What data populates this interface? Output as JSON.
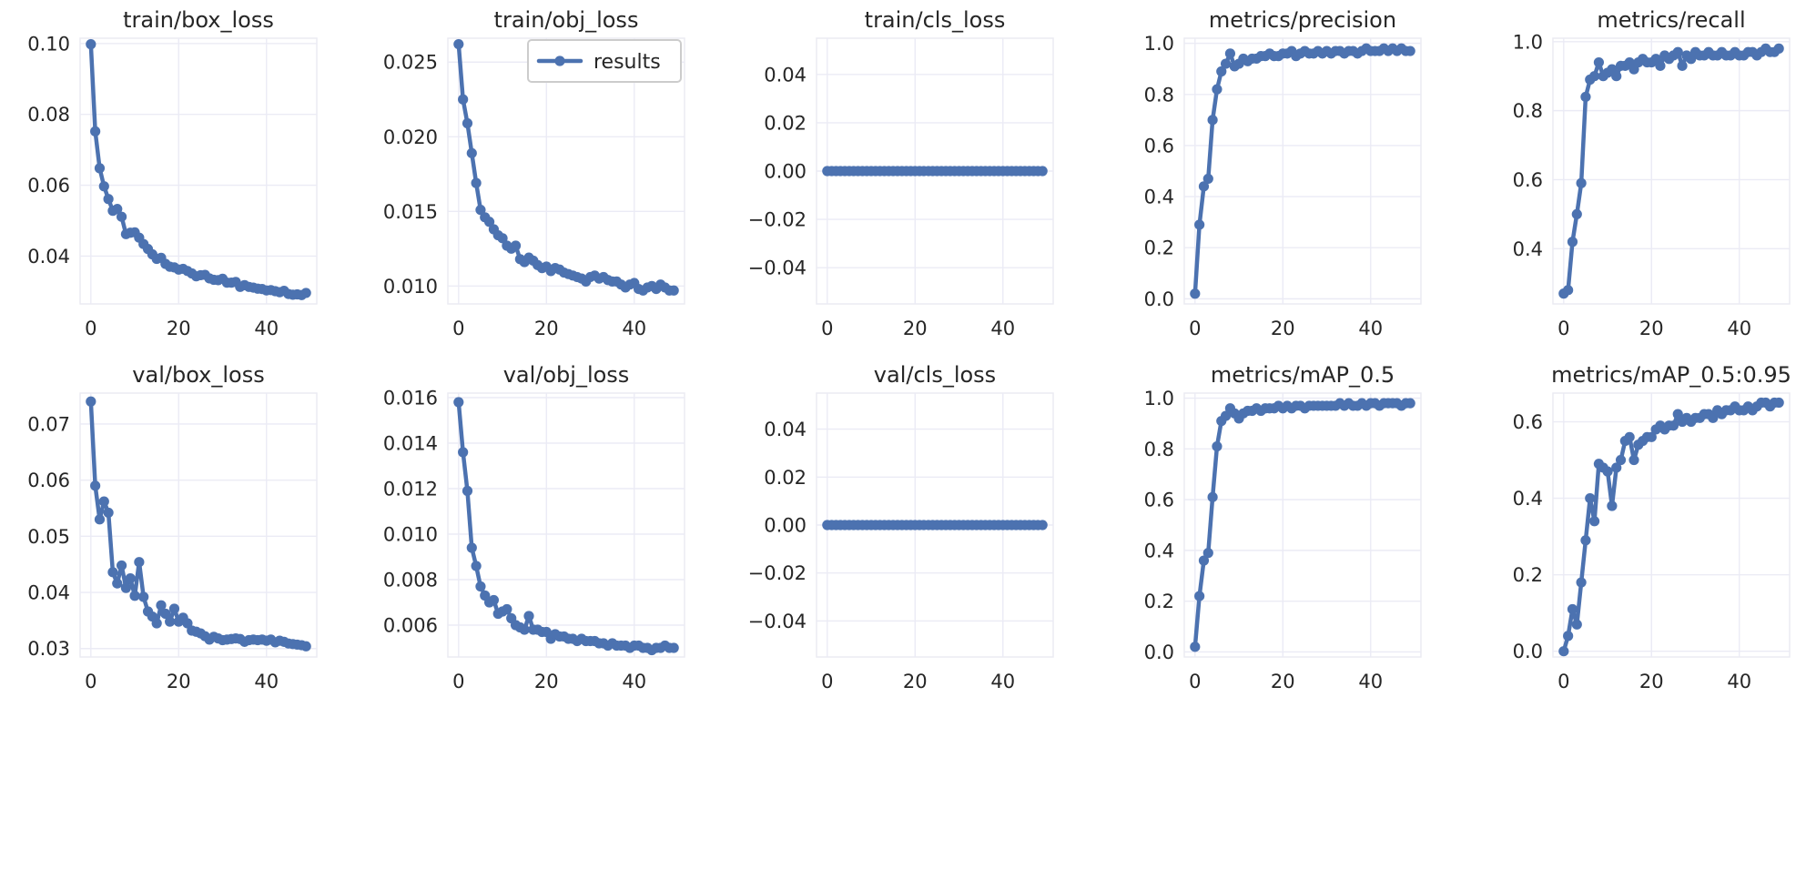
{
  "colors": {
    "series": "#4c72b0",
    "grid": "#ebebf5",
    "text": "#262626",
    "background": "#ffffff"
  },
  "legend": {
    "label": "results",
    "placement": "upper-right of train/obj_loss"
  },
  "chart_data": [
    {
      "type": "line",
      "title": "train/box_loss",
      "xlim": [
        0,
        49
      ],
      "ylim": [
        0.0265,
        0.1015
      ],
      "xticks": [
        0,
        20,
        40
      ],
      "xtick_labels": [
        "0",
        "20",
        "40"
      ],
      "yticks": [
        0.04,
        0.06,
        0.08,
        0.1
      ],
      "ytick_labels": [
        "0.04",
        "0.06",
        "0.08",
        "0.10"
      ],
      "series": [
        {
          "name": "results",
          "values": [
            0.0998,
            0.0752,
            0.0648,
            0.0597,
            0.0561,
            0.0528,
            0.0533,
            0.0511,
            0.0462,
            0.0466,
            0.0467,
            0.0452,
            0.0434,
            0.042,
            0.0405,
            0.0392,
            0.0395,
            0.0378,
            0.037,
            0.0368,
            0.0362,
            0.0364,
            0.0358,
            0.0351,
            0.0343,
            0.0346,
            0.0347,
            0.0337,
            0.0333,
            0.0332,
            0.0336,
            0.0325,
            0.0325,
            0.0327,
            0.0313,
            0.0318,
            0.0313,
            0.0311,
            0.0308,
            0.0307,
            0.0303,
            0.0304,
            0.0301,
            0.0298,
            0.0302,
            0.0293,
            0.0291,
            0.0292,
            0.029,
            0.0296
          ]
        }
      ]
    },
    {
      "type": "line",
      "title": "train/obj_loss",
      "xlim": [
        0,
        49
      ],
      "ylim": [
        0.0088,
        0.0266
      ],
      "xticks": [
        0,
        20,
        40
      ],
      "xtick_labels": [
        "0",
        "20",
        "40"
      ],
      "yticks": [
        0.01,
        0.015,
        0.02,
        0.025
      ],
      "ytick_labels": [
        "0.010",
        "0.015",
        "0.020",
        "0.025"
      ],
      "legend": true,
      "series": [
        {
          "name": "results",
          "values": [
            0.0262,
            0.0225,
            0.0209,
            0.0189,
            0.0169,
            0.0151,
            0.0146,
            0.0143,
            0.0138,
            0.0134,
            0.0132,
            0.0127,
            0.0125,
            0.0127,
            0.0118,
            0.0116,
            0.0119,
            0.0117,
            0.0114,
            0.0112,
            0.0113,
            0.011,
            0.0112,
            0.0111,
            0.0109,
            0.0108,
            0.0107,
            0.0106,
            0.0105,
            0.0103,
            0.0106,
            0.0107,
            0.0105,
            0.0106,
            0.0104,
            0.0103,
            0.0103,
            0.0101,
            0.0099,
            0.0101,
            0.0102,
            0.0098,
            0.0097,
            0.0099,
            0.01,
            0.0098,
            0.0101,
            0.0099,
            0.0097,
            0.0097
          ]
        }
      ]
    },
    {
      "type": "line",
      "title": "train/cls_loss",
      "xlim": [
        0,
        49
      ],
      "ylim": [
        -0.055,
        0.055
      ],
      "xticks": [
        0,
        20,
        40
      ],
      "xtick_labels": [
        "0",
        "20",
        "40"
      ],
      "yticks": [
        0.04,
        0.02,
        0.0,
        -0.02,
        -0.04
      ],
      "ytick_labels": [
        "0.04",
        "0.02",
        "0.00",
        "−0.02",
        "−0.04"
      ],
      "series": [
        {
          "name": "results",
          "values": [
            0,
            0,
            0,
            0,
            0,
            0,
            0,
            0,
            0,
            0,
            0,
            0,
            0,
            0,
            0,
            0,
            0,
            0,
            0,
            0,
            0,
            0,
            0,
            0,
            0,
            0,
            0,
            0,
            0,
            0,
            0,
            0,
            0,
            0,
            0,
            0,
            0,
            0,
            0,
            0,
            0,
            0,
            0,
            0,
            0,
            0,
            0,
            0,
            0,
            0
          ]
        }
      ]
    },
    {
      "type": "line",
      "title": "metrics/precision",
      "xlim": [
        0,
        49
      ],
      "ylim": [
        -0.02,
        1.02
      ],
      "xticks": [
        0,
        20,
        40
      ],
      "xtick_labels": [
        "0",
        "20",
        "40"
      ],
      "yticks": [
        0.0,
        0.2,
        0.4,
        0.6,
        0.8,
        1.0
      ],
      "ytick_labels": [
        "0.0",
        "0.2",
        "0.4",
        "0.6",
        "0.8",
        "1.0"
      ],
      "series": [
        {
          "name": "results",
          "values": [
            0.02,
            0.29,
            0.44,
            0.47,
            0.7,
            0.82,
            0.89,
            0.92,
            0.96,
            0.91,
            0.92,
            0.94,
            0.93,
            0.94,
            0.94,
            0.95,
            0.95,
            0.96,
            0.95,
            0.95,
            0.96,
            0.96,
            0.97,
            0.95,
            0.96,
            0.97,
            0.96,
            0.96,
            0.97,
            0.96,
            0.97,
            0.96,
            0.97,
            0.97,
            0.96,
            0.97,
            0.97,
            0.96,
            0.97,
            0.98,
            0.97,
            0.97,
            0.97,
            0.98,
            0.97,
            0.98,
            0.97,
            0.98,
            0.97,
            0.97
          ]
        }
      ]
    },
    {
      "type": "line",
      "title": "metrics/recall",
      "xlim": [
        0,
        49
      ],
      "ylim": [
        0.24,
        1.01
      ],
      "xticks": [
        0,
        20,
        40
      ],
      "xtick_labels": [
        "0",
        "20",
        "40"
      ],
      "yticks": [
        0.4,
        0.6,
        0.8,
        1.0
      ],
      "ytick_labels": [
        "0.4",
        "0.6",
        "0.8",
        "1.0"
      ],
      "series": [
        {
          "name": "results",
          "values": [
            0.27,
            0.28,
            0.42,
            0.5,
            0.59,
            0.84,
            0.89,
            0.9,
            0.94,
            0.9,
            0.91,
            0.92,
            0.9,
            0.93,
            0.93,
            0.94,
            0.92,
            0.94,
            0.95,
            0.94,
            0.94,
            0.95,
            0.93,
            0.96,
            0.95,
            0.96,
            0.97,
            0.93,
            0.96,
            0.95,
            0.97,
            0.96,
            0.96,
            0.97,
            0.96,
            0.96,
            0.97,
            0.96,
            0.96,
            0.97,
            0.96,
            0.96,
            0.97,
            0.97,
            0.96,
            0.97,
            0.98,
            0.97,
            0.97,
            0.98
          ]
        }
      ]
    },
    {
      "type": "line",
      "title": "val/box_loss",
      "xlim": [
        0,
        49
      ],
      "ylim": [
        0.0285,
        0.0755
      ],
      "xticks": [
        0,
        20,
        40
      ],
      "xtick_labels": [
        "0",
        "20",
        "40"
      ],
      "yticks": [
        0.03,
        0.04,
        0.05,
        0.06,
        0.07
      ],
      "ytick_labels": [
        "0.03",
        "0.04",
        "0.05",
        "0.06",
        "0.07"
      ],
      "series": [
        {
          "name": "results",
          "values": [
            0.074,
            0.059,
            0.053,
            0.0562,
            0.0542,
            0.0436,
            0.0416,
            0.0448,
            0.0408,
            0.0425,
            0.0394,
            0.0454,
            0.0392,
            0.0366,
            0.0357,
            0.0345,
            0.0377,
            0.0362,
            0.0348,
            0.0371,
            0.0348,
            0.0355,
            0.0345,
            0.0332,
            0.033,
            0.0327,
            0.0322,
            0.0316,
            0.0321,
            0.0318,
            0.0315,
            0.0316,
            0.0317,
            0.0318,
            0.0317,
            0.0312,
            0.0315,
            0.0316,
            0.0315,
            0.0316,
            0.0314,
            0.0316,
            0.0311,
            0.0314,
            0.0312,
            0.0309,
            0.0308,
            0.0307,
            0.0306,
            0.0304
          ]
        }
      ]
    },
    {
      "type": "line",
      "title": "val/obj_loss",
      "xlim": [
        0,
        49
      ],
      "ylim": [
        0.0046,
        0.0162
      ],
      "xticks": [
        0,
        20,
        40
      ],
      "xtick_labels": [
        "0",
        "20",
        "40"
      ],
      "yticks": [
        0.006,
        0.008,
        0.01,
        0.012,
        0.014,
        0.016
      ],
      "ytick_labels": [
        "0.006",
        "0.008",
        "0.010",
        "0.012",
        "0.014",
        "0.016"
      ],
      "series": [
        {
          "name": "results",
          "values": [
            0.0158,
            0.0136,
            0.0119,
            0.0094,
            0.0086,
            0.0077,
            0.0073,
            0.007,
            0.0071,
            0.0065,
            0.0066,
            0.0067,
            0.0063,
            0.006,
            0.0059,
            0.0058,
            0.0064,
            0.0058,
            0.0058,
            0.0057,
            0.0057,
            0.0054,
            0.0056,
            0.0055,
            0.0055,
            0.0054,
            0.0054,
            0.0053,
            0.0054,
            0.0053,
            0.0053,
            0.0053,
            0.0052,
            0.0052,
            0.0051,
            0.0052,
            0.0051,
            0.0051,
            0.0051,
            0.005,
            0.0051,
            0.0051,
            0.005,
            0.005,
            0.0049,
            0.005,
            0.005,
            0.0051,
            0.005,
            0.005
          ]
        }
      ]
    },
    {
      "type": "line",
      "title": "val/cls_loss",
      "xlim": [
        0,
        49
      ],
      "ylim": [
        -0.055,
        0.055
      ],
      "xticks": [
        0,
        20,
        40
      ],
      "xtick_labels": [
        "0",
        "20",
        "40"
      ],
      "yticks": [
        0.04,
        0.02,
        0.0,
        -0.02,
        -0.04
      ],
      "ytick_labels": [
        "0.04",
        "0.02",
        "0.00",
        "−0.02",
        "−0.04"
      ],
      "series": [
        {
          "name": "results",
          "values": [
            0,
            0,
            0,
            0,
            0,
            0,
            0,
            0,
            0,
            0,
            0,
            0,
            0,
            0,
            0,
            0,
            0,
            0,
            0,
            0,
            0,
            0,
            0,
            0,
            0,
            0,
            0,
            0,
            0,
            0,
            0,
            0,
            0,
            0,
            0,
            0,
            0,
            0,
            0,
            0,
            0,
            0,
            0,
            0,
            0,
            0,
            0,
            0,
            0,
            0
          ]
        }
      ]
    },
    {
      "type": "line",
      "title": "metrics/mAP_0.5",
      "xlim": [
        0,
        49
      ],
      "ylim": [
        -0.02,
        1.02
      ],
      "xticks": [
        0,
        20,
        40
      ],
      "xtick_labels": [
        "0",
        "20",
        "40"
      ],
      "yticks": [
        0.0,
        0.2,
        0.4,
        0.6,
        0.8,
        1.0
      ],
      "ytick_labels": [
        "0.0",
        "0.2",
        "0.4",
        "0.6",
        "0.8",
        "1.0"
      ],
      "series": [
        {
          "name": "results",
          "values": [
            0.02,
            0.22,
            0.36,
            0.39,
            0.61,
            0.81,
            0.91,
            0.93,
            0.96,
            0.94,
            0.92,
            0.94,
            0.95,
            0.95,
            0.96,
            0.95,
            0.96,
            0.96,
            0.96,
            0.97,
            0.96,
            0.97,
            0.96,
            0.97,
            0.97,
            0.96,
            0.97,
            0.97,
            0.97,
            0.97,
            0.97,
            0.97,
            0.97,
            0.98,
            0.97,
            0.98,
            0.97,
            0.97,
            0.98,
            0.97,
            0.98,
            0.98,
            0.97,
            0.98,
            0.98,
            0.98,
            0.98,
            0.97,
            0.98,
            0.98
          ]
        }
      ]
    },
    {
      "type": "line",
      "title": "metrics/mAP_0.5:0.95",
      "xlim": [
        0,
        49
      ],
      "ylim": [
        -0.015,
        0.675
      ],
      "xticks": [
        0,
        20,
        40
      ],
      "xtick_labels": [
        "0",
        "20",
        "40"
      ],
      "yticks": [
        0.0,
        0.2,
        0.4,
        0.6
      ],
      "ytick_labels": [
        "0.0",
        "0.2",
        "0.4",
        "0.6"
      ],
      "series": [
        {
          "name": "results",
          "values": [
            0.0,
            0.04,
            0.11,
            0.07,
            0.18,
            0.29,
            0.4,
            0.34,
            0.49,
            0.48,
            0.47,
            0.38,
            0.48,
            0.5,
            0.55,
            0.56,
            0.5,
            0.54,
            0.55,
            0.56,
            0.56,
            0.58,
            0.59,
            0.58,
            0.59,
            0.59,
            0.62,
            0.6,
            0.61,
            0.6,
            0.61,
            0.61,
            0.62,
            0.62,
            0.61,
            0.63,
            0.62,
            0.63,
            0.63,
            0.64,
            0.63,
            0.63,
            0.64,
            0.63,
            0.64,
            0.65,
            0.65,
            0.64,
            0.65,
            0.65
          ]
        }
      ]
    }
  ]
}
